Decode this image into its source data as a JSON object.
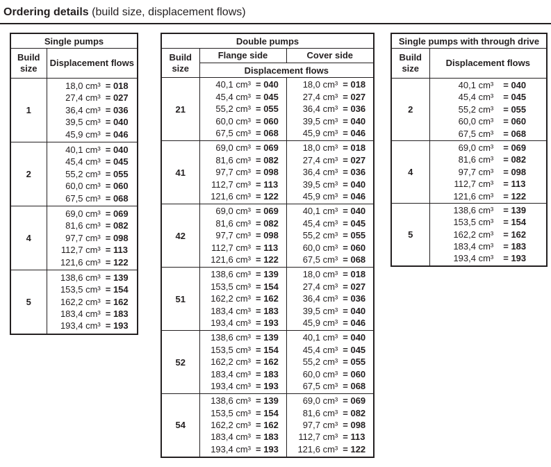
{
  "title": {
    "bold": "Ordering details",
    "rest": " (build size, displacement flows)"
  },
  "labels": {
    "build": "Build size",
    "flows": "Displacement flows",
    "flange": "Flange side",
    "cover": "Cover side"
  },
  "colors": {
    "text": "#231f20",
    "border": "#231f20",
    "background": "#ffffff"
  },
  "single_pumps": {
    "title": "Single pumps",
    "rows": [
      {
        "build": "1",
        "flows": [
          [
            "18,0 cm³",
            "= 018"
          ],
          [
            "27,4 cm³",
            "= 027"
          ],
          [
            "36,4 cm³",
            "= 036"
          ],
          [
            "39,5 cm³",
            "= 040"
          ],
          [
            "45,9 cm³",
            "= 046"
          ]
        ]
      },
      {
        "build": "2",
        "flows": [
          [
            "40,1 cm³",
            "= 040"
          ],
          [
            "45,4 cm³",
            "= 045"
          ],
          [
            "55,2 cm³",
            "= 055"
          ],
          [
            "60,0 cm³",
            "= 060"
          ],
          [
            "67,5 cm³",
            "= 068"
          ]
        ]
      },
      {
        "build": "4",
        "flows": [
          [
            "69,0 cm³",
            "= 069"
          ],
          [
            "81,6 cm³",
            "= 082"
          ],
          [
            "97,7 cm³",
            "= 098"
          ],
          [
            "112,7 cm³",
            "= 113"
          ],
          [
            "121,6 cm³",
            "= 122"
          ]
        ]
      },
      {
        "build": "5",
        "flows": [
          [
            "138,6 cm³",
            "= 139"
          ],
          [
            "153,5 cm³",
            "= 154"
          ],
          [
            "162,2 cm³",
            "= 162"
          ],
          [
            "183,4 cm³",
            "= 183"
          ],
          [
            "193,4 cm³",
            "= 193"
          ]
        ]
      }
    ]
  },
  "double_pumps": {
    "title": "Double pumps",
    "rows": [
      {
        "build": "21",
        "flange": [
          [
            "40,1 cm³",
            "= 040"
          ],
          [
            "45,4 cm³",
            "= 045"
          ],
          [
            "55,2 cm³",
            "= 055"
          ],
          [
            "60,0 cm³",
            "= 060"
          ],
          [
            "67,5 cm³",
            "= 068"
          ]
        ],
        "cover": [
          [
            "18,0 cm³",
            "= 018"
          ],
          [
            "27,4 cm³",
            "= 027"
          ],
          [
            "36,4 cm³",
            "= 036"
          ],
          [
            "39,5 cm³",
            "= 040"
          ],
          [
            "45,9 cm³",
            "= 046"
          ]
        ]
      },
      {
        "build": "41",
        "flange": [
          [
            "69,0 cm³",
            "= 069"
          ],
          [
            "81,6 cm³",
            "= 082"
          ],
          [
            "97,7 cm³",
            "= 098"
          ],
          [
            "112,7 cm³",
            "= 113"
          ],
          [
            "121,6 cm³",
            "= 122"
          ]
        ],
        "cover": [
          [
            "18,0 cm³",
            "= 018"
          ],
          [
            "27,4 cm³",
            "= 027"
          ],
          [
            "36,4 cm³",
            "= 036"
          ],
          [
            "39,5 cm³",
            "= 040"
          ],
          [
            "45,9 cm³",
            "= 046"
          ]
        ]
      },
      {
        "build": "42",
        "flange": [
          [
            "69,0 cm³",
            "= 069"
          ],
          [
            "81,6 cm³",
            "= 082"
          ],
          [
            "97,7 cm³",
            "= 098"
          ],
          [
            "112,7 cm³",
            "= 113"
          ],
          [
            "121,6 cm³",
            "= 122"
          ]
        ],
        "cover": [
          [
            "40,1 cm³",
            "= 040"
          ],
          [
            "45,4 cm³",
            "= 045"
          ],
          [
            "55,2 cm³",
            "= 055"
          ],
          [
            "60,0 cm³",
            "= 060"
          ],
          [
            "67,5 cm³",
            "= 068"
          ]
        ]
      },
      {
        "build": "51",
        "flange": [
          [
            "138,6 cm³",
            "= 139"
          ],
          [
            "153,5 cm³",
            "= 154"
          ],
          [
            "162,2 cm³",
            "= 162"
          ],
          [
            "183,4 cm³",
            "= 183"
          ],
          [
            "193,4 cm³",
            "= 193"
          ]
        ],
        "cover": [
          [
            "18,0 cm³",
            "= 018"
          ],
          [
            "27,4 cm³",
            "= 027"
          ],
          [
            "36,4 cm³",
            "= 036"
          ],
          [
            "39,5 cm³",
            "= 040"
          ],
          [
            "45,9 cm³",
            "= 046"
          ]
        ]
      },
      {
        "build": "52",
        "flange": [
          [
            "138,6 cm³",
            "= 139"
          ],
          [
            "153,5 cm³",
            "= 154"
          ],
          [
            "162,2 cm³",
            "= 162"
          ],
          [
            "183,4 cm³",
            "= 183"
          ],
          [
            "193,4 cm³",
            "= 193"
          ]
        ],
        "cover": [
          [
            "40,1 cm³",
            "= 040"
          ],
          [
            "45,4 cm³",
            "= 045"
          ],
          [
            "55,2 cm³",
            "= 055"
          ],
          [
            "60,0 cm³",
            "= 060"
          ],
          [
            "67,5 cm³",
            "= 068"
          ]
        ]
      },
      {
        "build": "54",
        "flange": [
          [
            "138,6 cm³",
            "= 139"
          ],
          [
            "153,5 cm³",
            "= 154"
          ],
          [
            "162,2 cm³",
            "= 162"
          ],
          [
            "183,4 cm³",
            "= 183"
          ],
          [
            "193,4 cm³",
            "= 193"
          ]
        ],
        "cover": [
          [
            "69,0 cm³",
            "= 069"
          ],
          [
            "81,6 cm³",
            "= 082"
          ],
          [
            "97,7 cm³",
            "= 098"
          ],
          [
            "112,7 cm³",
            "= 113"
          ],
          [
            "121,6 cm³",
            "= 122"
          ]
        ]
      }
    ]
  },
  "through_drive": {
    "title": "Single pumps with through drive",
    "rows": [
      {
        "build": "2",
        "flows": [
          [
            "40,1 cm³",
            "= 040"
          ],
          [
            "45,4 cm³",
            "= 045"
          ],
          [
            "55,2 cm³",
            "= 055"
          ],
          [
            "60,0 cm³",
            "= 060"
          ],
          [
            "67,5 cm³",
            "= 068"
          ]
        ]
      },
      {
        "build": "4",
        "flows": [
          [
            "69,0 cm³",
            "= 069"
          ],
          [
            "81,6 cm³",
            "= 082"
          ],
          [
            "97,7 cm³",
            "= 098"
          ],
          [
            "112,7 cm³",
            "= 113"
          ],
          [
            "121,6 cm³",
            "= 122"
          ]
        ]
      },
      {
        "build": "5",
        "flows": [
          [
            "138,6 cm³",
            "= 139"
          ],
          [
            "153,5 cm³",
            "= 154"
          ],
          [
            "162,2 cm³",
            "= 162"
          ],
          [
            "183,4 cm³",
            "= 183"
          ],
          [
            "193,4 cm³",
            "= 193"
          ]
        ]
      }
    ]
  }
}
